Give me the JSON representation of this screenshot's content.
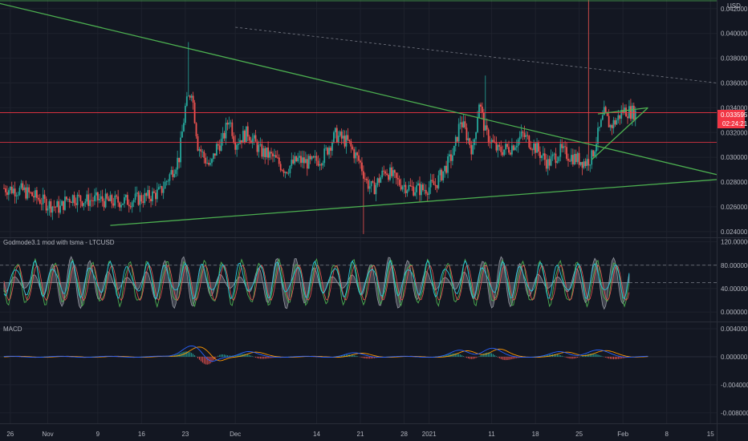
{
  "currency_label": "USD",
  "chart_data": [
    {
      "type": "line",
      "pane": "price",
      "title": "",
      "y_ticks": [
        "0.042000",
        "0.040000",
        "0.038000",
        "0.036000",
        "0.034000",
        "0.032000",
        "0.030000",
        "0.028000",
        "0.026000",
        "0.024000"
      ],
      "y_values": [
        0.042,
        0.04,
        0.038,
        0.036,
        0.034,
        0.032,
        0.03,
        0.028,
        0.026,
        0.024
      ],
      "ylim": [
        0.0236,
        0.0427
      ],
      "last_price": "0.033595",
      "countdown": "02:24:21",
      "x_ticks": [
        "26",
        "Nov",
        "9",
        "16",
        "23",
        "Dec",
        "14",
        "21",
        "28",
        "2021",
        "11",
        "18",
        "25",
        "Feb",
        "8",
        "15"
      ],
      "x_tick_days": [
        -6,
        0,
        8,
        15,
        22,
        30,
        43,
        50,
        57,
        61,
        71,
        78,
        85,
        92,
        99,
        106
      ],
      "close_series": {
        "days": [
          -7,
          -4,
          -2,
          0,
          2,
          3,
          4,
          6,
          8,
          10,
          13,
          16,
          18,
          20,
          21,
          22,
          23,
          24,
          25,
          26,
          27,
          28,
          29,
          30,
          32,
          34,
          36,
          38,
          40,
          42,
          44,
          46,
          48,
          50,
          51,
          52,
          54,
          56,
          58,
          60,
          62,
          64,
          65,
          66,
          67,
          68,
          69,
          70,
          72,
          74,
          76,
          78,
          80,
          82,
          84,
          86,
          87,
          88,
          89,
          90,
          91,
          92,
          94
        ],
        "values": [
          0.0275,
          0.0273,
          0.0268,
          0.0262,
          0.0259,
          0.0266,
          0.0268,
          0.0265,
          0.0266,
          0.0264,
          0.0265,
          0.0268,
          0.0272,
          0.029,
          0.03,
          0.034,
          0.0355,
          0.031,
          0.03,
          0.0292,
          0.0308,
          0.0314,
          0.0332,
          0.0312,
          0.032,
          0.0305,
          0.03,
          0.029,
          0.0298,
          0.0295,
          0.03,
          0.0318,
          0.0312,
          0.0295,
          0.028,
          0.0274,
          0.029,
          0.028,
          0.0275,
          0.0274,
          0.0278,
          0.0295,
          0.0305,
          0.033,
          0.0318,
          0.0305,
          0.0345,
          0.032,
          0.0305,
          0.0308,
          0.0318,
          0.0308,
          0.0295,
          0.0305,
          0.03,
          0.0296,
          0.03,
          0.0318,
          0.0335,
          0.0325,
          0.033,
          0.0338,
          0.0336
        ]
      },
      "trendlines": [
        {
          "name": "descending-resistance",
          "color": "#4caf50",
          "from": [
            -10,
            0.0427
          ],
          "to": [
            107,
            0.0286
          ]
        },
        {
          "name": "ascending-support",
          "color": "#4caf50",
          "from": [
            10,
            0.0245
          ],
          "to": [
            107,
            0.0282
          ]
        },
        {
          "name": "wedge-upper",
          "color": "#4caf50",
          "from": [
            88,
            0.0335
          ],
          "to": [
            96,
            0.034
          ]
        },
        {
          "name": "wedge-lower",
          "color": "#4caf50",
          "from": [
            87,
            0.0298
          ],
          "to": [
            96,
            0.034
          ]
        }
      ],
      "hlines": [
        {
          "value": 0.0336,
          "color": "#f23645"
        },
        {
          "value": 0.0312,
          "color": "#f23645"
        }
      ],
      "dashed_line": {
        "color": "#787b86",
        "from": [
          30,
          0.0405
        ],
        "to": [
          107,
          0.036
        ]
      },
      "colors": {
        "up": "#26a69a",
        "down": "#ef5350",
        "last_price_bg": "#f23645"
      }
    },
    {
      "type": "line",
      "pane": "godmode",
      "title": "Godmode3.1 mod with tsma - LTCUSD",
      "y_ticks": [
        "120.000000",
        "80.000000",
        "40.000000",
        "0.000000"
      ],
      "y_values": [
        120,
        80,
        40,
        0
      ],
      "ylim": [
        -15,
        125
      ],
      "levels": [
        80,
        50
      ],
      "colors": {
        "osc": "#787b86",
        "green": "#4caf50",
        "teal": "#26c6da",
        "red": "#ef5350",
        "orange": "#ff9800"
      }
    },
    {
      "type": "line",
      "pane": "macd",
      "title": "MACD",
      "y_ticks": [
        "0.004000",
        "0.000000",
        "-0.004000",
        "-0.008000"
      ],
      "y_values": [
        0.004,
        0,
        -0.004,
        -0.008
      ],
      "ylim": [
        -0.0095,
        0.0048
      ],
      "colors": {
        "macd": "#2962ff",
        "signal": "#ff9800",
        "hist_up": "#26a69a",
        "hist_down": "#ef5350"
      }
    }
  ]
}
